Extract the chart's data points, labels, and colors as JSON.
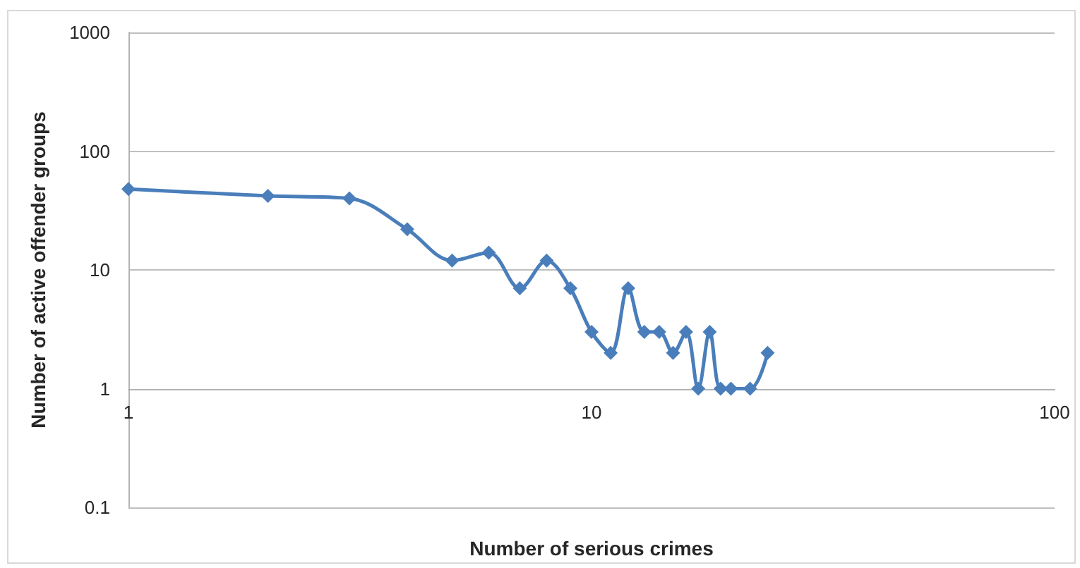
{
  "chart_data": {
    "type": "line",
    "xlabel": "Number of serious crimes",
    "ylabel": "Number of active offender groups",
    "x": [
      1,
      2,
      3,
      4,
      5,
      6,
      7,
      8,
      9,
      10,
      11,
      12,
      13,
      14,
      15,
      16,
      17,
      18,
      19,
      20,
      22,
      24
    ],
    "series": [
      {
        "color": "#4a7ebb",
        "values": [
          48,
          42,
          40,
          22,
          12,
          14,
          7,
          12,
          7,
          3,
          2,
          7,
          3,
          3,
          2,
          3,
          1,
          3,
          1,
          1,
          1,
          2
        ]
      }
    ],
    "log": "xy",
    "xlim": [
      1,
      100
    ],
    "xticks": [
      1,
      10,
      100
    ],
    "ylim": [
      0.1,
      1000
    ],
    "yticks": [
      0.1,
      1,
      10,
      100,
      1000
    ],
    "grid": "y",
    "marker": "diamond",
    "line_style": "solid"
  }
}
